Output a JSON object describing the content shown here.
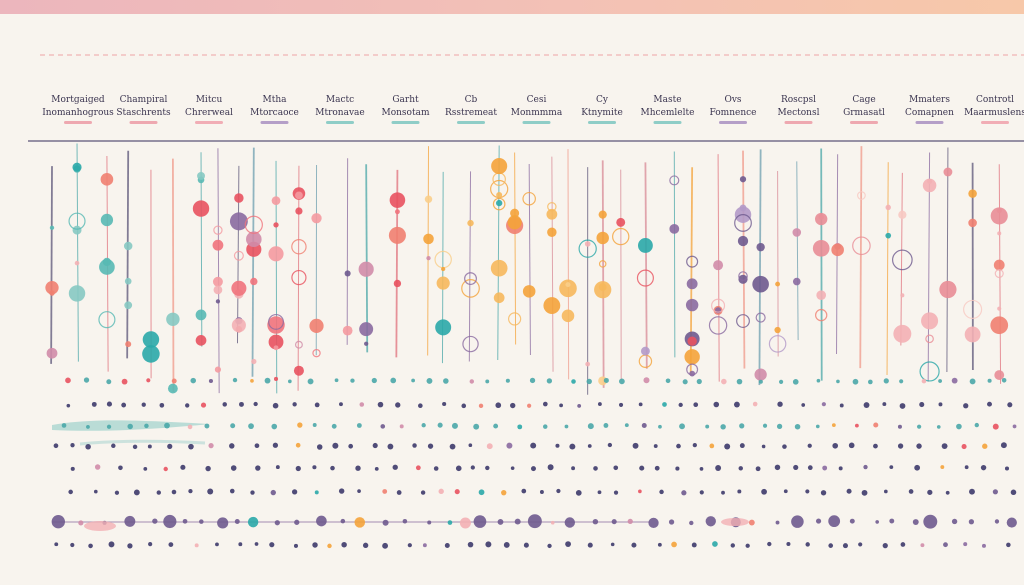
{
  "chart_data": {
    "type": "scatter",
    "title": "",
    "categories": [
      {
        "label": [
          "Mortgaiged",
          "Inomanhogrous"
        ],
        "color": "#ec9aa5"
      },
      {
        "label": [
          "Champiral",
          "Staschrents"
        ],
        "color": "#ec9aa5"
      },
      {
        "label": [
          "Mitcu",
          "Chrerweal"
        ],
        "color": "#f0a0aa"
      },
      {
        "label": [
          "Mtha",
          "Mtorcaoce"
        ],
        "color": "#a98fc1"
      },
      {
        "label": [
          "Mactc",
          "Mtronavae"
        ],
        "color": "#7cc6c0"
      },
      {
        "label": [
          "Garht",
          "Monsotam"
        ],
        "color": "#7cc6c0"
      },
      {
        "label": [
          "Cb",
          "Rsstremeat"
        ],
        "color": "#7cc6c0"
      },
      {
        "label": [
          "Cesi",
          "Monmmma"
        ],
        "color": "#7cc6c0"
      },
      {
        "label": [
          "Cy",
          "Ktnymite"
        ],
        "color": "#7cc6c0"
      },
      {
        "label": [
          "Maste",
          "Mhcemlelte"
        ],
        "color": "#7cc6c0"
      },
      {
        "label": [
          "Ovs",
          "Fomnence"
        ],
        "color": "#a98fc1"
      },
      {
        "label": [
          "Roscpsl",
          "Mectonsl"
        ],
        "color": "#ec9aa5"
      },
      {
        "label": [
          "Cage",
          "Grmasatl"
        ],
        "color": "#ec9aa5"
      },
      {
        "label": [
          "Mmaters",
          "Comapnen"
        ],
        "color": "#a98fc1"
      },
      {
        "label": [
          "Controtl",
          "Maarmuslens"
        ],
        "color": "#f0a0aa"
      }
    ],
    "palette": [
      "#e8525f",
      "#f08070",
      "#f4a33a",
      "#2aa8a8",
      "#6e5a8e",
      "#f3b0b4",
      "#d08ca8",
      "#8a6aa0"
    ],
    "grid": false,
    "legend": "top"
  }
}
